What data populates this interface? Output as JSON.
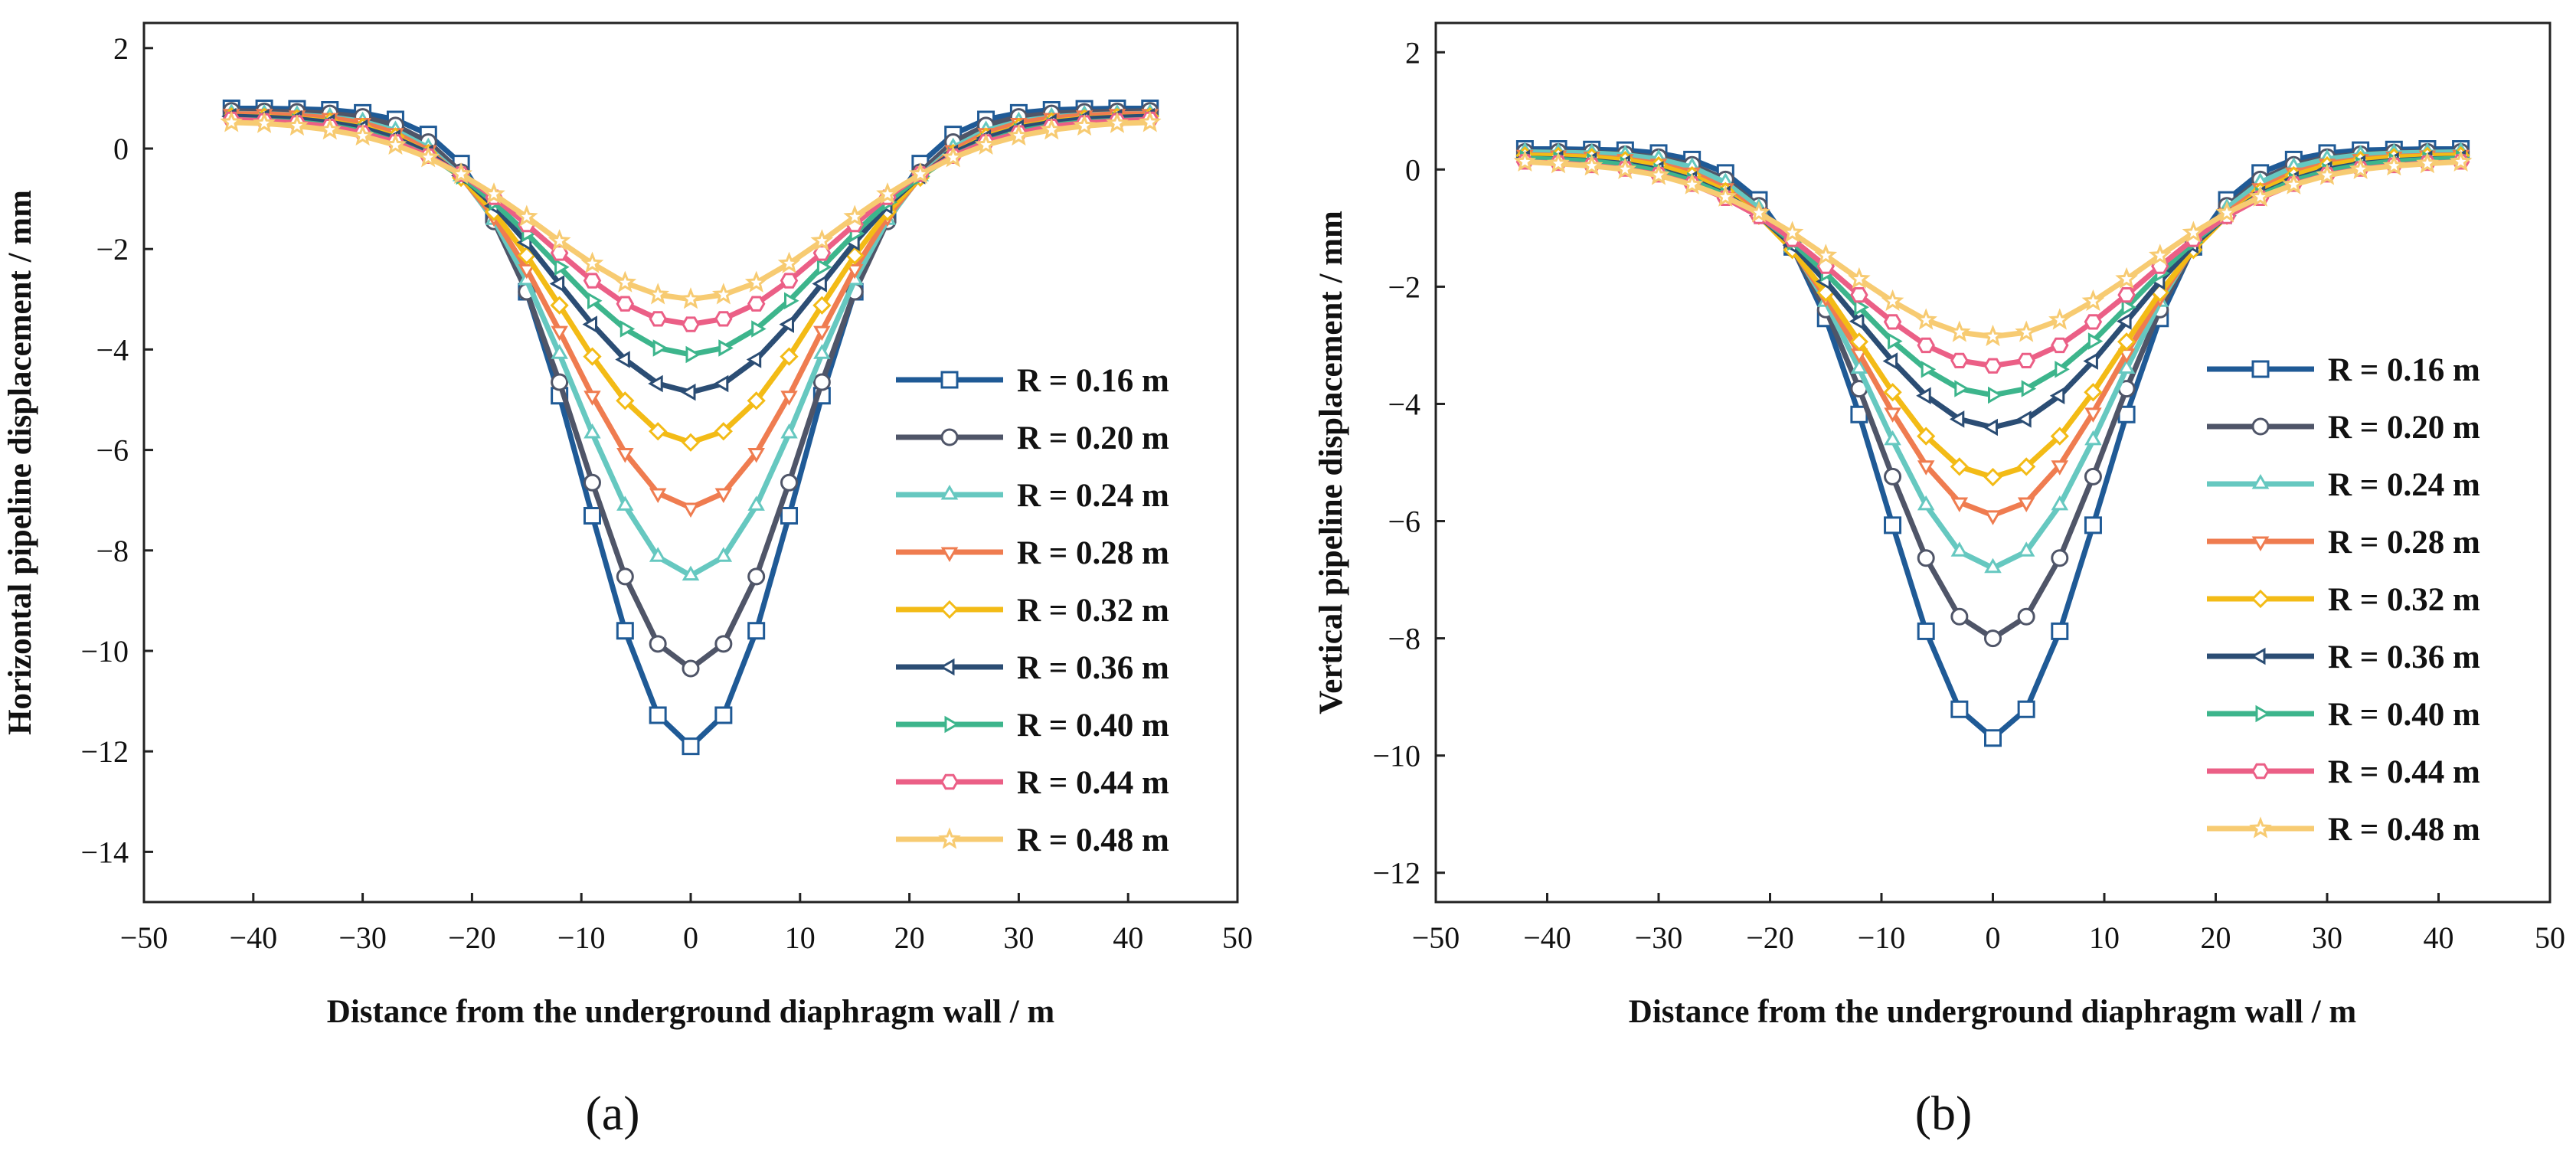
{
  "chart_data": [
    {
      "type": "line",
      "panel_label": "(a)",
      "xlabel": "Distance from the underground diaphragm wall / m",
      "ylabel": "Horizontal pipeline displacement / mm",
      "xlim": [
        -50,
        50
      ],
      "ylim": [
        -15,
        2.5
      ],
      "xticks": [
        -50,
        -40,
        -30,
        -20,
        -10,
        0,
        10,
        20,
        30,
        40,
        50
      ],
      "xtick_labels": [
        "−50",
        "−40",
        "−30",
        "−20",
        "−10",
        "0",
        "10",
        "20",
        "30",
        "40",
        "50"
      ],
      "yticks": [
        2,
        0,
        -2,
        -4,
        -6,
        -8,
        -10,
        -12,
        -14
      ],
      "ytick_labels": [
        "2",
        "0",
        "−2",
        "−4",
        "−6",
        "−8",
        "−10",
        "−12",
        "−14"
      ],
      "grid": false,
      "legend_position": "right",
      "x": [
        -42,
        -39,
        -36,
        -33,
        -30,
        -27,
        -24,
        -21,
        -18,
        -15,
        -12,
        -9,
        -6,
        -3,
        0,
        3,
        6,
        9,
        12,
        15,
        18,
        21,
        24,
        27,
        30,
        33,
        36,
        39,
        42
      ],
      "series": [
        {
          "name": "R = 0.16 m",
          "color": "#1f5a96",
          "marker": "square",
          "peak": -11.9,
          "edge": 0.8,
          "width": 9.5
        },
        {
          "name": "R = 0.20 m",
          "color": "#4f5568",
          "marker": "circle",
          "peak": -10.35,
          "edge": 0.75,
          "width": 10.0
        },
        {
          "name": "R = 0.24 m",
          "color": "#66c8c0",
          "marker": "triangle-up",
          "peak": -8.5,
          "edge": 0.7,
          "width": 10.5
        },
        {
          "name": "R = 0.28 m",
          "color": "#ef7c50",
          "marker": "triangle-down",
          "peak": -7.15,
          "edge": 0.7,
          "width": 11.0
        },
        {
          "name": "R = 0.32 m",
          "color": "#f3bb16",
          "marker": "diamond",
          "peak": -5.85,
          "edge": 0.65,
          "width": 11.5
        },
        {
          "name": "R = 0.36 m",
          "color": "#2b4d74",
          "marker": "triangle-left",
          "peak": -4.85,
          "edge": 0.65,
          "width": 12.0
        },
        {
          "name": "R = 0.40 m",
          "color": "#3db58c",
          "marker": "triangle-right",
          "peak": -4.1,
          "edge": 0.6,
          "width": 12.5
        },
        {
          "name": "R = 0.44 m",
          "color": "#eb5f86",
          "marker": "hexagon",
          "peak": -3.5,
          "edge": 0.6,
          "width": 13.0
        },
        {
          "name": "R = 0.48 m",
          "color": "#f7cb72",
          "marker": "star",
          "peak": -3.0,
          "edge": 0.55,
          "width": 13.5
        }
      ]
    },
    {
      "type": "line",
      "panel_label": "(b)",
      "xlabel": "Distance from the underground diaphragm wall / m",
      "ylabel": "Vertical pipeline displacement / mm",
      "xlim": [
        -50,
        50
      ],
      "ylim": [
        -12.5,
        2.5
      ],
      "xticks": [
        -50,
        -40,
        -30,
        -20,
        -10,
        0,
        10,
        20,
        30,
        40,
        50
      ],
      "xtick_labels": [
        "−50",
        "−40",
        "−30",
        "−20",
        "−10",
        "0",
        "10",
        "20",
        "30",
        "40",
        "50"
      ],
      "yticks": [
        2,
        0,
        -2,
        -4,
        -6,
        -8,
        -10,
        -12
      ],
      "ytick_labels": [
        "2",
        "0",
        "−2",
        "−4",
        "−6",
        "−8",
        "−10",
        "−12"
      ],
      "grid": false,
      "legend_position": "right",
      "x": [
        -42,
        -39,
        -36,
        -33,
        -30,
        -27,
        -24,
        -21,
        -18,
        -15,
        -12,
        -9,
        -6,
        -3,
        0,
        3,
        6,
        9,
        12,
        15,
        18,
        21,
        24,
        27,
        30,
        33,
        36,
        39,
        42
      ],
      "series": [
        {
          "name": "R = 0.16 m",
          "color": "#1f5a96",
          "marker": "square",
          "peak": -9.7,
          "edge": 0.35,
          "width": 9.5
        },
        {
          "name": "R = 0.20 m",
          "color": "#4f5568",
          "marker": "circle",
          "peak": -8.0,
          "edge": 0.3,
          "width": 10.0
        },
        {
          "name": "R = 0.24 m",
          "color": "#66c8c0",
          "marker": "triangle-up",
          "peak": -6.8,
          "edge": 0.3,
          "width": 10.5
        },
        {
          "name": "R = 0.28 m",
          "color": "#ef7c50",
          "marker": "triangle-down",
          "peak": -5.9,
          "edge": 0.25,
          "width": 11.0
        },
        {
          "name": "R = 0.32 m",
          "color": "#f3bb16",
          "marker": "diamond",
          "peak": -5.25,
          "edge": 0.25,
          "width": 11.5
        },
        {
          "name": "R = 0.36 m",
          "color": "#2b4d74",
          "marker": "triangle-left",
          "peak": -4.4,
          "edge": 0.2,
          "width": 12.0
        },
        {
          "name": "R = 0.40 m",
          "color": "#3db58c",
          "marker": "triangle-right",
          "peak": -3.85,
          "edge": 0.2,
          "width": 12.5
        },
        {
          "name": "R = 0.44 m",
          "color": "#eb5f86",
          "marker": "hexagon",
          "peak": -3.35,
          "edge": 0.15,
          "width": 13.0
        },
        {
          "name": "R = 0.48 m",
          "color": "#f7cb72",
          "marker": "star",
          "peak": -2.85,
          "edge": 0.15,
          "width": 13.5
        }
      ]
    }
  ]
}
